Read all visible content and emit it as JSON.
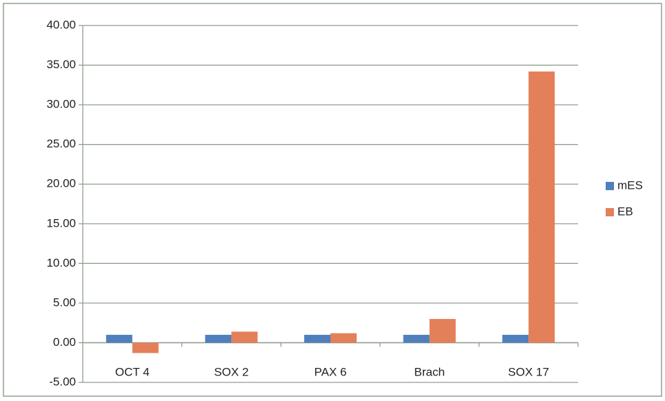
{
  "chart_data": {
    "type": "bar",
    "categories": [
      "OCT 4",
      "SOX 2",
      "PAX 6",
      "Brach",
      "SOX 17"
    ],
    "series": [
      {
        "name": "mES",
        "color": "#4f7fbd",
        "values": [
          1.0,
          1.0,
          1.0,
          1.0,
          1.0
        ]
      },
      {
        "name": "EB",
        "color": "#e3805a",
        "values": [
          -1.3,
          1.4,
          1.2,
          3.0,
          34.2
        ]
      }
    ],
    "ylim": [
      -5,
      40
    ],
    "yticks": [
      {
        "value": -5,
        "label": "-5.00"
      },
      {
        "value": 0,
        "label": "0.00"
      },
      {
        "value": 5,
        "label": "5.00"
      },
      {
        "value": 10,
        "label": "10.00"
      },
      {
        "value": 15,
        "label": "15.00"
      },
      {
        "value": 20,
        "label": "20.00"
      },
      {
        "value": 25,
        "label": "25.00"
      },
      {
        "value": 30,
        "label": "30.00"
      },
      {
        "value": 35,
        "label": "35.00"
      },
      {
        "value": 40,
        "label": "40.00"
      }
    ],
    "grid": true,
    "legend": "right"
  }
}
